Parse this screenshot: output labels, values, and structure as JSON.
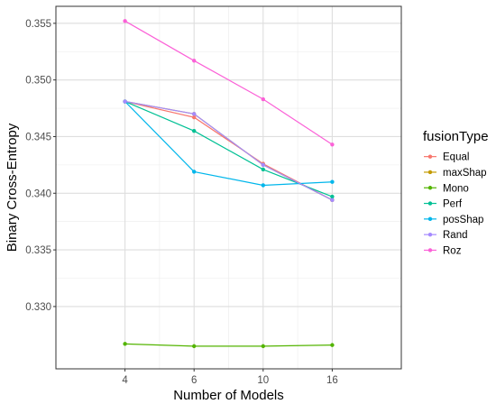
{
  "chart_data": {
    "type": "line",
    "title": "",
    "xlabel": "Number of Models",
    "ylabel": "Binary Cross-Entropy",
    "categories": [
      "4",
      "6",
      "10",
      "16"
    ],
    "ylim": [
      0.3245,
      0.3565
    ],
    "yticks": [
      0.33,
      0.335,
      0.34,
      0.345,
      0.35,
      0.355
    ],
    "ytick_labels": [
      "0.330",
      "0.335",
      "0.340",
      "0.345",
      "0.350",
      "0.355"
    ],
    "grid": true,
    "legend_position": "right",
    "legend_title": "fusionType",
    "series": [
      {
        "name": "Equal",
        "color": "#F8766D",
        "values": [
          0.3481,
          0.3467,
          0.3426,
          0.3394
        ]
      },
      {
        "name": "maxShap",
        "color": "#C49A00",
        "values": [
          0.3481,
          0.347,
          0.3425,
          0.3394
        ]
      },
      {
        "name": "Mono",
        "color": "#53B400",
        "values": [
          0.3267,
          0.3265,
          0.3265,
          0.3266
        ]
      },
      {
        "name": "Perf",
        "color": "#00C094",
        "values": [
          0.3481,
          0.3455,
          0.3421,
          0.3397
        ]
      },
      {
        "name": "posShap",
        "color": "#00B6EB",
        "values": [
          0.3481,
          0.3419,
          0.3407,
          0.341
        ]
      },
      {
        "name": "Rand",
        "color": "#A58AFF",
        "values": [
          0.3481,
          0.347,
          0.3425,
          0.3394
        ]
      },
      {
        "name": "Roz",
        "color": "#FB61D7",
        "values": [
          0.3552,
          0.3517,
          0.3483,
          0.3443
        ]
      }
    ]
  }
}
